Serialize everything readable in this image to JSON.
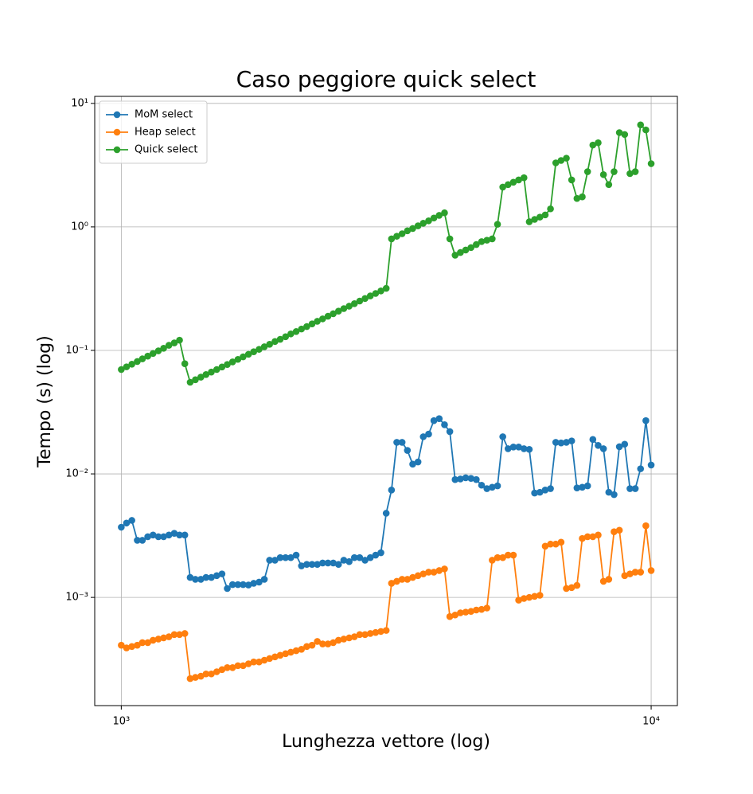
{
  "chart_data": {
    "type": "line",
    "title": "Caso peggiore quick select",
    "xlabel": "Lunghezza vettore (log)",
    "ylabel": "Tempo (s) (log)",
    "xscale": "log",
    "yscale": "log",
    "grid": true,
    "legend": "upper left",
    "xlim": [
      891,
      11207
    ],
    "ylim": [
      0.000133,
      11.4
    ],
    "xticks": [
      {
        "value": 1000,
        "label": "10³"
      },
      {
        "value": 10000,
        "label": "10⁴"
      }
    ],
    "yticks": [
      {
        "value": 0.001,
        "label": "10⁻³"
      },
      {
        "value": 0.01,
        "label": "10⁻²"
      },
      {
        "value": 0.1,
        "label": "10⁻¹"
      },
      {
        "value": 1,
        "label": "10⁰"
      },
      {
        "value": 10,
        "label": "10¹"
      }
    ],
    "x": [
      1000,
      1023,
      1047,
      1072,
      1096,
      1122,
      1148,
      1175,
      1202,
      1230,
      1259,
      1288,
      1318,
      1349,
      1380,
      1413,
      1445,
      1479,
      1514,
      1549,
      1585,
      1622,
      1660,
      1698,
      1738,
      1778,
      1820,
      1862,
      1905,
      1950,
      1995,
      2042,
      2089,
      2138,
      2188,
      2239,
      2291,
      2344,
      2399,
      2455,
      2512,
      2570,
      2630,
      2692,
      2754,
      2818,
      2884,
      2951,
      3020,
      3090,
      3162,
      3236,
      3311,
      3388,
      3467,
      3548,
      3631,
      3715,
      3802,
      3890,
      3981,
      4074,
      4169,
      4266,
      4365,
      4467,
      4571,
      4677,
      4786,
      4898,
      5012,
      5129,
      5248,
      5370,
      5495,
      5623,
      5754,
      5888,
      6026,
      6166,
      6310,
      6457,
      6607,
      6761,
      6918,
      7079,
      7244,
      7413,
      7586,
      7762,
      7943,
      8128,
      8318,
      8511,
      8710,
      8913,
      9120,
      9333,
      9550,
      9772,
      10000
    ],
    "series": [
      {
        "name": "MoM select",
        "color": "#1f77b4",
        "values": [
          0.0037,
          0.004,
          0.0042,
          0.0029,
          0.0029,
          0.0031,
          0.0032,
          0.0031,
          0.0031,
          0.0032,
          0.0033,
          0.0032,
          0.0032,
          0.00145,
          0.0014,
          0.0014,
          0.00145,
          0.00145,
          0.0015,
          0.00155,
          0.00118,
          0.00127,
          0.00127,
          0.00127,
          0.00126,
          0.0013,
          0.00133,
          0.0014,
          0.002,
          0.002,
          0.0021,
          0.0021,
          0.0021,
          0.0022,
          0.0018,
          0.00185,
          0.00185,
          0.00185,
          0.0019,
          0.0019,
          0.0019,
          0.00185,
          0.002,
          0.00195,
          0.0021,
          0.0021,
          0.002,
          0.0021,
          0.0022,
          0.0023,
          0.0048,
          0.0074,
          0.018,
          0.018,
          0.0155,
          0.012,
          0.0125,
          0.02,
          0.021,
          0.027,
          0.028,
          0.025,
          0.022,
          0.009,
          0.0091,
          0.0093,
          0.0092,
          0.009,
          0.0081,
          0.0076,
          0.0078,
          0.008,
          0.02,
          0.016,
          0.0165,
          0.0165,
          0.016,
          0.0158,
          0.007,
          0.0071,
          0.0074,
          0.0076,
          0.018,
          0.0178,
          0.018,
          0.0185,
          0.0077,
          0.0078,
          0.008,
          0.019,
          0.017,
          0.016,
          0.0071,
          0.0068,
          0.0166,
          0.0174,
          0.0076,
          0.0076,
          0.011,
          0.027,
          0.0118
        ]
      },
      {
        "name": "Heap select",
        "color": "#ff7f0e",
        "values": [
          0.00041,
          0.00039,
          0.0004,
          0.00041,
          0.00043,
          0.00043,
          0.00045,
          0.00046,
          0.00047,
          0.00048,
          0.0005,
          0.0005,
          0.00051,
          0.00022,
          0.000225,
          0.00023,
          0.00024,
          0.00024,
          0.00025,
          0.00026,
          0.00027,
          0.00027,
          0.00028,
          0.00028,
          0.00029,
          0.0003,
          0.0003,
          0.00031,
          0.00032,
          0.00033,
          0.00034,
          0.00035,
          0.00036,
          0.00037,
          0.00038,
          0.0004,
          0.00041,
          0.00044,
          0.00042,
          0.00042,
          0.00043,
          0.00045,
          0.00046,
          0.00047,
          0.00048,
          0.0005,
          0.0005,
          0.00051,
          0.00052,
          0.00053,
          0.00054,
          0.0013,
          0.00135,
          0.0014,
          0.0014,
          0.00145,
          0.0015,
          0.00155,
          0.0016,
          0.0016,
          0.00165,
          0.0017,
          0.0007,
          0.00072,
          0.00075,
          0.00076,
          0.00077,
          0.00079,
          0.0008,
          0.00082,
          0.002,
          0.0021,
          0.0021,
          0.0022,
          0.0022,
          0.00095,
          0.00098,
          0.001,
          0.00102,
          0.00104,
          0.0026,
          0.0027,
          0.0027,
          0.0028,
          0.00118,
          0.0012,
          0.00125,
          0.003,
          0.0031,
          0.0031,
          0.0032,
          0.00135,
          0.0014,
          0.0034,
          0.0035,
          0.0015,
          0.00155,
          0.0016,
          0.0016,
          0.0038,
          0.00165
        ]
      },
      {
        "name": "Quick select",
        "color": "#2ca02c",
        "values": [
          0.07,
          0.0736,
          0.0773,
          0.0813,
          0.0854,
          0.0898,
          0.0944,
          0.0992,
          0.104,
          0.11,
          0.115,
          0.121,
          0.078,
          0.0552,
          0.0579,
          0.0607,
          0.0637,
          0.0668,
          0.07,
          0.0734,
          0.0769,
          0.0807,
          0.0846,
          0.0887,
          0.093,
          0.0975,
          0.102,
          0.107,
          0.112,
          0.118,
          0.123,
          0.129,
          0.136,
          0.142,
          0.149,
          0.156,
          0.164,
          0.172,
          0.18,
          0.189,
          0.198,
          0.208,
          0.218,
          0.228,
          0.239,
          0.251,
          0.263,
          0.276,
          0.289,
          0.303,
          0.318,
          0.8,
          0.84,
          0.88,
          0.93,
          0.97,
          1.02,
          1.07,
          1.12,
          1.18,
          1.24,
          1.3,
          0.8,
          0.59,
          0.62,
          0.65,
          0.68,
          0.72,
          0.76,
          0.78,
          0.8,
          1.05,
          2.1,
          2.2,
          2.3,
          2.4,
          2.5,
          1.1,
          1.15,
          1.2,
          1.25,
          1.4,
          3.3,
          3.45,
          3.6,
          2.4,
          1.7,
          1.75,
          2.8,
          4.6,
          4.8,
          2.65,
          2.2,
          2.8,
          5.8,
          5.6,
          2.7,
          2.8,
          6.7,
          6.1,
          3.25
        ]
      }
    ]
  }
}
